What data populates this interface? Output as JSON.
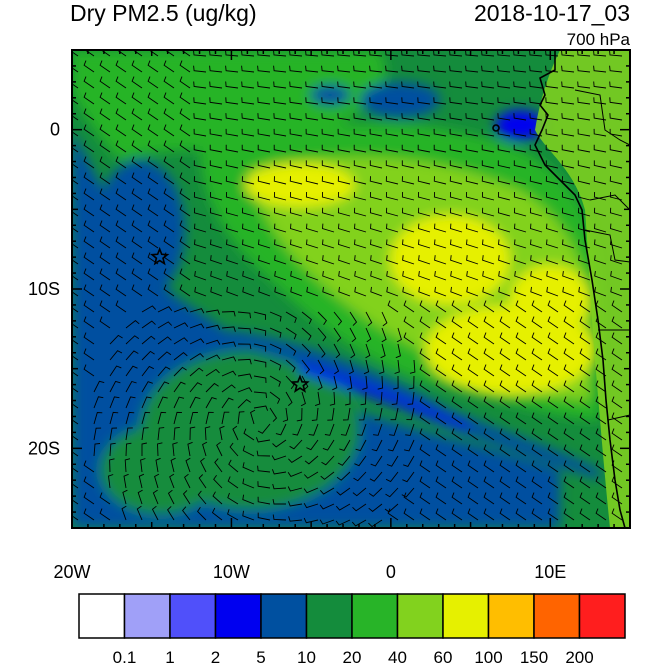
{
  "header": {
    "variable_title": "Dry PM2.5 (ug/kg)",
    "datetime": "2018-10-17_03",
    "pressure_level": "700 hPa"
  },
  "axes": {
    "x_ticks": [
      {
        "value": -20,
        "label": "20W"
      },
      {
        "value": -10,
        "label": "10W"
      },
      {
        "value": 0,
        "label": "0"
      },
      {
        "value": 10,
        "label": "10E"
      }
    ],
    "y_ticks": [
      {
        "value": 0,
        "label": "0"
      },
      {
        "value": -10,
        "label": "10S"
      },
      {
        "value": -20,
        "label": "20S"
      }
    ],
    "lon_range": [
      -20,
      15
    ],
    "lat_range": [
      -25,
      5
    ]
  },
  "markers": [
    {
      "name": "star-1",
      "lon": -14.5,
      "lat": -8
    },
    {
      "name": "star-2",
      "lon": -5.7,
      "lat": -16
    }
  ],
  "colorbar": {
    "colors": [
      "#ffffff",
      "#a0a0f8",
      "#5050fa",
      "#0000f0",
      "#0050a0",
      "#148c3c",
      "#28b428",
      "#82d21e",
      "#e6f000",
      "#ffbe00",
      "#ff6400",
      "#ff1e1e"
    ],
    "boundaries": [
      "0.1",
      "1",
      "2",
      "5",
      "10",
      "20",
      "40",
      "60",
      "100",
      "150",
      "200"
    ]
  }
}
